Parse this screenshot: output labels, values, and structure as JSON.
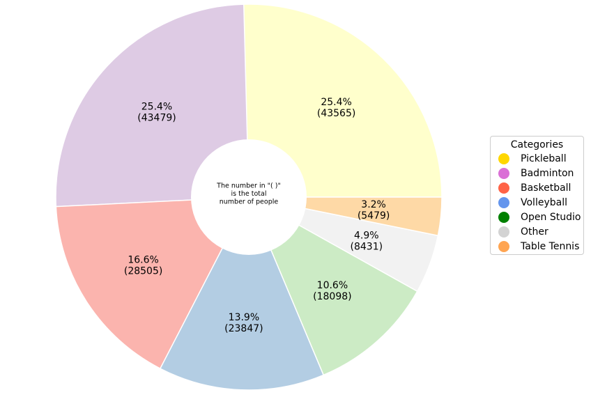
{
  "chart_data": {
    "type": "pie",
    "donut": true,
    "slices": [
      {
        "pct_label": "25.4%",
        "count_label": "(43565)",
        "value": 43565,
        "color": "#ffffcc"
      },
      {
        "pct_label": "25.4%",
        "count_label": "(43479)",
        "value": 43479,
        "color": "#decbe4"
      },
      {
        "pct_label": "16.6%",
        "count_label": "(28505)",
        "value": 28505,
        "color": "#fbb4ae"
      },
      {
        "pct_label": "13.9%",
        "count_label": "(23847)",
        "value": 23847,
        "color": "#b3cde3"
      },
      {
        "pct_label": "10.6%",
        "count_label": "(18098)",
        "value": 18098,
        "color": "#ccebc5"
      },
      {
        "pct_label": "4.9%",
        "count_label": "(8431)",
        "value": 8431,
        "color": "#f2f2f2"
      },
      {
        "pct_label": "3.2%",
        "count_label": "(5479)",
        "value": 5479,
        "color": "#fed9a6"
      }
    ],
    "center_text": [
      "The number in \"( )\"",
      "is the total",
      "number of people"
    ],
    "legend": {
      "title": "Categories",
      "placement": "right",
      "items": [
        {
          "label": "Pickleball",
          "color": "#ffd700"
        },
        {
          "label": "Badminton",
          "color": "#da70d6"
        },
        {
          "label": "Basketball",
          "color": "#ff6347"
        },
        {
          "label": "Volleyball",
          "color": "#6495ed"
        },
        {
          "label": "Open Studio",
          "color": "#008000"
        },
        {
          "label": "Other",
          "color": "#d3d3d3"
        },
        {
          "label": "Table Tennis",
          "color": "#ffa552"
        }
      ]
    }
  }
}
